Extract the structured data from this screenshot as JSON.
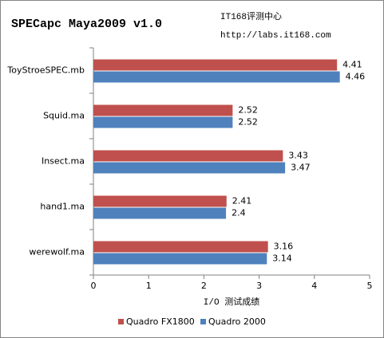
{
  "chart_data": {
    "type": "bar",
    "orientation": "horizontal",
    "title": "SPECapc Maya2009 v1.0",
    "annotations": [
      "IT168评测中心",
      "http://labs.it168.com"
    ],
    "x_label": "I/O 测试成绩",
    "categories": [
      "ToyStroeSPEC.mb",
      "Squid.ma",
      "Insect.ma",
      "hand1.ma",
      "werewolf.ma"
    ],
    "series": [
      {
        "name": "Quadro FX1800",
        "color": "#c0504d",
        "values": [
          4.41,
          2.52,
          3.43,
          2.41,
          3.16
        ]
      },
      {
        "name": "Quadro 2000",
        "color": "#4f81bd",
        "values": [
          4.46,
          2.52,
          3.47,
          2.4,
          3.14
        ]
      }
    ],
    "xlim": [
      0,
      5
    ],
    "xticks": [
      0,
      1,
      2,
      3,
      4,
      5
    ],
    "grid": false,
    "legend": "bottom"
  }
}
